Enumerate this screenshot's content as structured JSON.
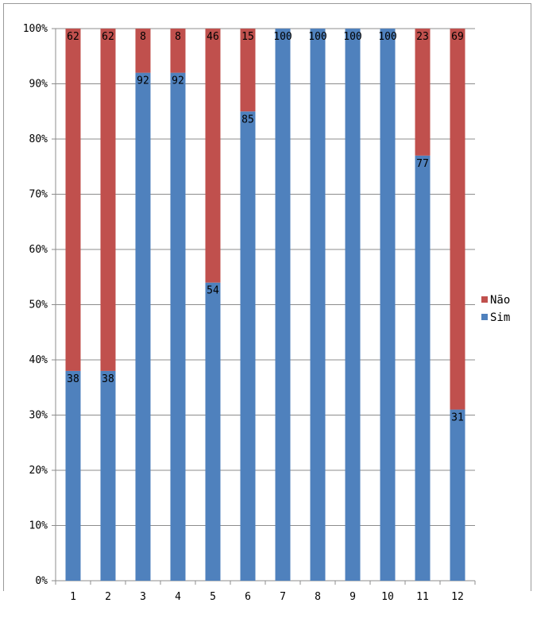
{
  "chart_data": {
    "type": "bar",
    "stacked": true,
    "percent": true,
    "categories": [
      "1",
      "2",
      "3",
      "4",
      "5",
      "6",
      "7",
      "8",
      "9",
      "10",
      "11",
      "12"
    ],
    "series": [
      {
        "name": "Sim",
        "color": "#4f81bd",
        "values": [
          38,
          38,
          92,
          92,
          54,
          85,
          100,
          100,
          100,
          100,
          77,
          31
        ]
      },
      {
        "name": "Não",
        "color": "#c0504d",
        "values": [
          62,
          62,
          8,
          8,
          46,
          15,
          0,
          0,
          0,
          0,
          23,
          69
        ]
      }
    ],
    "y_ticks": [
      "0%",
      "10%",
      "20%",
      "30%",
      "40%",
      "50%",
      "60%",
      "70%",
      "80%",
      "90%",
      "100%"
    ],
    "ylim": [
      0,
      100
    ],
    "grid": true,
    "legend_position": "right",
    "legend_order": [
      "Não",
      "Sim"
    ],
    "title": "",
    "xlabel": "",
    "ylabel": ""
  }
}
